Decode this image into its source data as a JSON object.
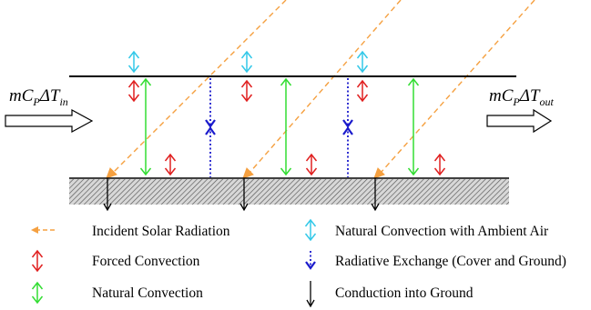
{
  "flow": {
    "inlet_base": "mC",
    "inlet_sub_p": "P",
    "inlet_delta": "ΔT",
    "inlet_sub": "in",
    "outlet_base": "mC",
    "outlet_sub_p": "P",
    "outlet_delta": "ΔT",
    "outlet_sub": "out"
  },
  "legend": {
    "solar": "Incident Solar Radiation",
    "forced": "Forced Convection",
    "natural": "Natural Convection",
    "ambient": "Natural Convection with Ambient Air",
    "radiative": "Radiative Exchange (Cover and Ground)",
    "conduction": "Conduction into Ground"
  },
  "colors": {
    "solar": "#f5a040",
    "forced": "#e02020",
    "natural": "#33dd33",
    "ambient": "#33c8e8",
    "radiative": "#1a1acc",
    "conduction": "#000000"
  }
}
